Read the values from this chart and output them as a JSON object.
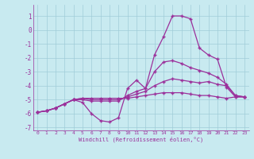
{
  "background_color": "#c8eaf0",
  "line_color": "#9b309b",
  "xlim": [
    -0.5,
    23.5
  ],
  "ylim": [
    -7.2,
    1.8
  ],
  "xticks": [
    0,
    1,
    2,
    3,
    4,
    5,
    6,
    7,
    8,
    9,
    10,
    11,
    12,
    13,
    14,
    15,
    16,
    17,
    18,
    19,
    20,
    21,
    22,
    23
  ],
  "yticks": [
    -7,
    -6,
    -5,
    -4,
    -3,
    -2,
    -1,
    0,
    1
  ],
  "xlabel": "Windchill (Refroidissement éolien,°C)",
  "grid_color": "#a0ccd8",
  "line1_x": [
    0,
    1,
    2,
    3,
    4,
    5,
    6,
    7,
    8,
    9,
    10,
    11,
    12,
    13,
    14,
    15,
    16,
    17,
    18,
    19,
    20,
    21,
    22,
    23
  ],
  "line1_y": [
    -5.9,
    -5.8,
    -5.6,
    -5.3,
    -5.0,
    -5.2,
    -6.0,
    -6.5,
    -6.6,
    -6.3,
    -4.2,
    -3.6,
    -4.2,
    -1.8,
    -0.5,
    1.0,
    1.0,
    0.8,
    -1.3,
    -1.8,
    -2.1,
    -4.1,
    -4.8,
    -4.8
  ],
  "line2_x": [
    0,
    1,
    2,
    3,
    4,
    5,
    6,
    7,
    8,
    9,
    10,
    11,
    12,
    13,
    14,
    15,
    16,
    17,
    18,
    19,
    20,
    21,
    22,
    23
  ],
  "line2_y": [
    -5.9,
    -5.8,
    -5.6,
    -5.3,
    -5.0,
    -5.0,
    -5.1,
    -5.1,
    -5.1,
    -5.1,
    -4.7,
    -4.4,
    -4.2,
    -3.0,
    -2.3,
    -2.2,
    -2.4,
    -2.7,
    -2.9,
    -3.1,
    -3.4,
    -3.9,
    -4.7,
    -4.8
  ],
  "line3_x": [
    0,
    1,
    2,
    3,
    4,
    5,
    6,
    7,
    8,
    9,
    10,
    11,
    12,
    13,
    14,
    15,
    16,
    17,
    18,
    19,
    20,
    21,
    22,
    23
  ],
  "line3_y": [
    -5.9,
    -5.8,
    -5.6,
    -5.3,
    -5.0,
    -4.9,
    -5.0,
    -5.0,
    -5.0,
    -5.0,
    -4.8,
    -4.6,
    -4.4,
    -4.0,
    -3.7,
    -3.5,
    -3.6,
    -3.7,
    -3.8,
    -3.7,
    -3.9,
    -4.0,
    -4.7,
    -4.8
  ],
  "line4_x": [
    0,
    1,
    2,
    3,
    4,
    5,
    6,
    7,
    8,
    9,
    10,
    11,
    12,
    13,
    14,
    15,
    16,
    17,
    18,
    19,
    20,
    21,
    22,
    23
  ],
  "line4_y": [
    -5.9,
    -5.8,
    -5.6,
    -5.3,
    -5.0,
    -4.9,
    -4.9,
    -4.9,
    -4.9,
    -4.9,
    -4.9,
    -4.8,
    -4.7,
    -4.6,
    -4.5,
    -4.5,
    -4.5,
    -4.6,
    -4.7,
    -4.7,
    -4.8,
    -4.9,
    -4.8,
    -4.8
  ]
}
